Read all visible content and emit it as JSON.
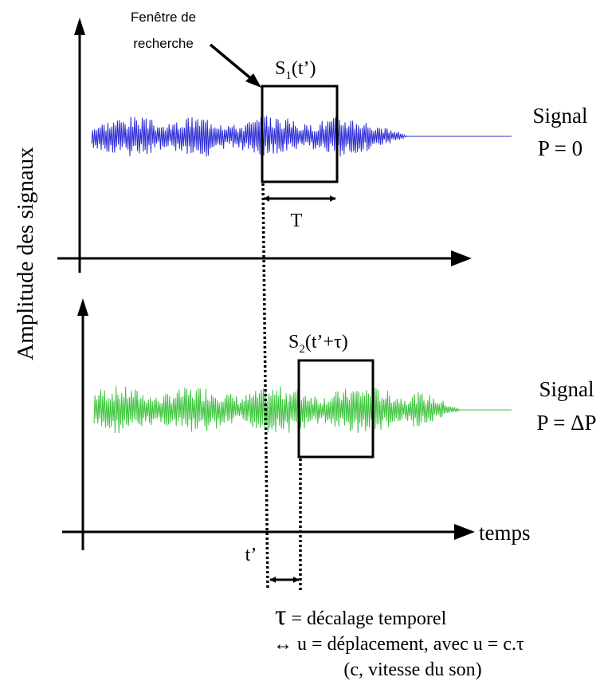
{
  "search_window_label_line1": "Fenêtre de",
  "search_window_label_line2": "recherche",
  "y_axis_label": "Amplitude des signaux",
  "x_axis_label": "temps",
  "top_panel": {
    "window_label_main": "S",
    "window_label_sub": "1",
    "window_label_arg": "(t’)",
    "window_width_label": "T",
    "signal_label_line1": "Signal",
    "signal_label_line2": "P = 0",
    "signal_color": "#2b2bd6"
  },
  "bottom_panel": {
    "window_label_main": "S",
    "window_label_sub": "2",
    "window_label_arg": "(t’+τ)",
    "signal_label_line1": "Signal",
    "signal_label_line2": "P = ΔP",
    "signal_color": "#3cc43c",
    "tprime_label": "t’"
  },
  "caption": {
    "tau_symbol": "τ",
    "line1_rest": " = décalage temporel",
    "line2": "↔ u = déplacement, avec u = c.τ",
    "line3": "(c, vitesse du son)"
  }
}
